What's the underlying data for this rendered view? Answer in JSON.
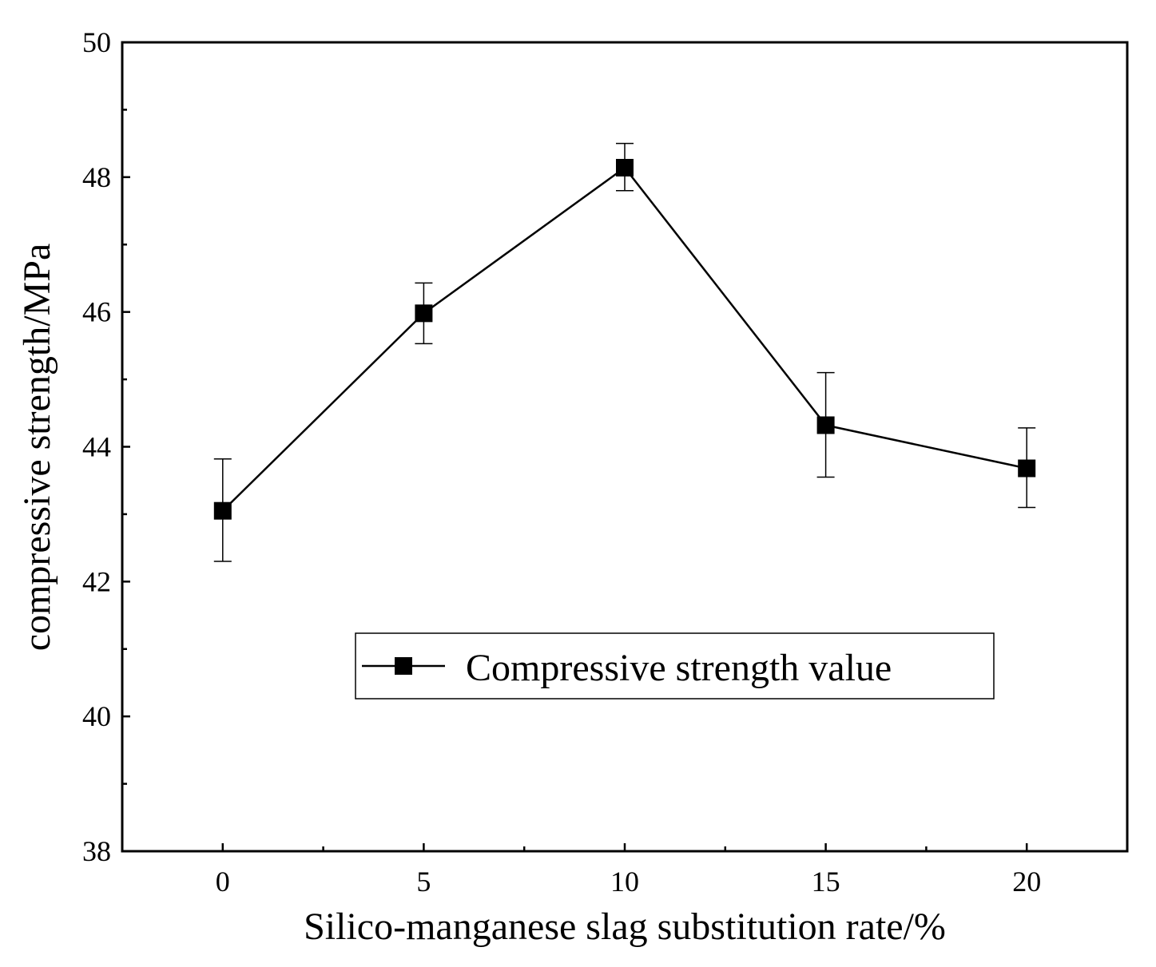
{
  "chart_data": {
    "type": "line",
    "title": "",
    "xlabel": "Silico-manganese slag substitution rate/%",
    "ylabel": "compressive strength/MPa",
    "x": [
      0,
      5,
      10,
      15,
      20
    ],
    "series": [
      {
        "name": "Compressive strength value",
        "values": [
          43.05,
          45.98,
          48.14,
          44.32,
          43.68
        ],
        "error_low": [
          42.3,
          45.53,
          47.8,
          43.55,
          43.1
        ],
        "error_high": [
          43.82,
          46.43,
          48.5,
          45.1,
          44.28
        ],
        "color": "#000000",
        "marker": "square"
      }
    ],
    "xlim": [
      -2.5,
      22.5
    ],
    "ylim": [
      38,
      50
    ],
    "xticks": [
      "0",
      "5",
      "10",
      "15",
      "20"
    ],
    "yticks": [
      "38",
      "40",
      "42",
      "44",
      "46",
      "48",
      "50"
    ],
    "legend_position": "lower-center",
    "grid": false
  }
}
